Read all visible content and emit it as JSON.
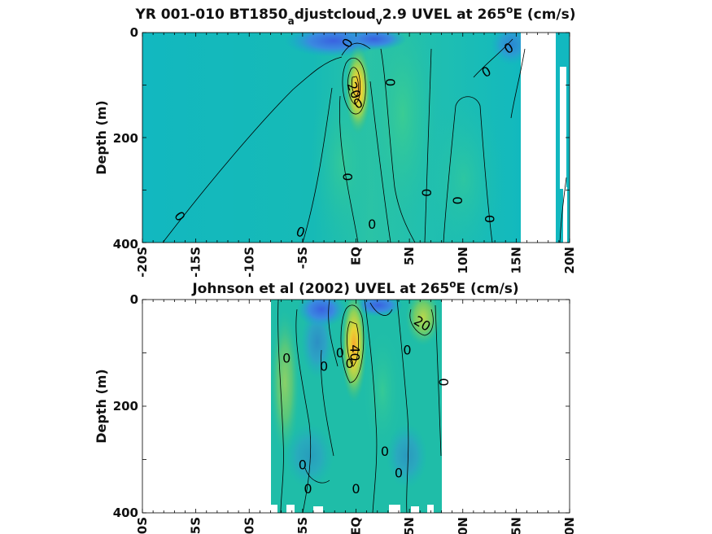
{
  "colors": {
    "background": "#12b8c0",
    "positive": "#f0c535",
    "negative": "#2d6fd6",
    "contour": "#000000"
  },
  "chart_data": [
    {
      "type": "heatmap",
      "title": "YR 001-010 BT1850",
      "title_sub1": "a",
      "title_mid": "djustcloud",
      "title_sub2": "v",
      "title_end": "2.9 UVEL at 265",
      "title_sup": "o",
      "title_unit": "E (cm/s)",
      "ylabel": "Depth (m)",
      "xlim": [
        -20,
        20
      ],
      "ylim": [
        0,
        400
      ],
      "y_reversed": true,
      "xticks": [
        "-20S",
        "-15S",
        "-10S",
        "-5S",
        "EQ",
        "5N",
        "10N",
        "15N",
        "20N"
      ],
      "yticks": [
        "0",
        "200",
        "400"
      ],
      "data_extent_x": [
        -20,
        15.5
      ],
      "features": [
        {
          "kind": "jet_core",
          "lat": 0.2,
          "depth": 75,
          "value": 40
        },
        {
          "kind": "westward_surface",
          "lat": -1,
          "depth": 5,
          "value": -20
        },
        {
          "kind": "westward_surface",
          "lat": 1.5,
          "depth": 8,
          "value": -20
        }
      ],
      "contour_labels": [
        {
          "text": "0",
          "lat": -16.5,
          "depth": 350,
          "angle": 55
        },
        {
          "text": "0",
          "lat": -5.2,
          "depth": 380,
          "angle": 20
        },
        {
          "text": "0",
          "lat": -0.8,
          "depth": 20,
          "angle": -60
        },
        {
          "text": "20",
          "lat": -0.2,
          "depth": 110,
          "angle": 70
        },
        {
          "text": "0",
          "lat": 0.2,
          "depth": 135,
          "angle": -30
        },
        {
          "text": "0",
          "lat": 3.2,
          "depth": 95,
          "angle": 90
        },
        {
          "text": "0",
          "lat": -0.8,
          "depth": 275,
          "angle": 90
        },
        {
          "text": "0",
          "lat": 1.5,
          "depth": 365,
          "angle": 0
        },
        {
          "text": "0",
          "lat": 6.6,
          "depth": 305,
          "angle": 90
        },
        {
          "text": "0",
          "lat": 9.5,
          "depth": 320,
          "angle": 90
        },
        {
          "text": "0",
          "lat": 12.5,
          "depth": 355,
          "angle": 90
        },
        {
          "text": "0",
          "lat": 12.2,
          "depth": 75,
          "angle": -30
        },
        {
          "text": "0",
          "lat": 14.3,
          "depth": 30,
          "angle": -30
        }
      ]
    },
    {
      "type": "heatmap",
      "title": "Johnson et al (2002) UVEL at 265",
      "title_sup": "o",
      "title_unit": "E (cm/s)",
      "ylabel": "Depth (m)",
      "xlim": [
        -20,
        20
      ],
      "ylim": [
        0,
        400
      ],
      "y_reversed": true,
      "xticks": [
        "-20S",
        "-15S",
        "-10S",
        "-5S",
        "EQ",
        "5N",
        "10N",
        "15N",
        "20N"
      ],
      "yticks": [
        "0",
        "200",
        "400"
      ],
      "data_extent_x": [
        -8,
        8
      ],
      "features": [
        {
          "kind": "jet_core",
          "lat": 0,
          "depth": 70,
          "value": 40
        },
        {
          "kind": "eastward_surface",
          "lat": 6.5,
          "depth": 30,
          "value": 20
        },
        {
          "kind": "westward_surface",
          "lat": -4,
          "depth": 10,
          "value": -20
        },
        {
          "kind": "westward_surface",
          "lat": 2,
          "depth": 10,
          "value": -20
        }
      ],
      "contour_labels": [
        {
          "text": "0",
          "lat": -6.5,
          "depth": 110,
          "angle": 0
        },
        {
          "text": "0",
          "lat": -1.5,
          "depth": 100,
          "angle": 0
        },
        {
          "text": "0",
          "lat": -3,
          "depth": 125,
          "angle": 0
        },
        {
          "text": "0",
          "lat": -0.6,
          "depth": 120,
          "angle": 0
        },
        {
          "text": "40",
          "lat": -0.1,
          "depth": 100,
          "angle": 90
        },
        {
          "text": "20",
          "lat": 6.2,
          "depth": 45,
          "angle": 30
        },
        {
          "text": "0",
          "lat": 4.8,
          "depth": 95,
          "angle": 0
        },
        {
          "text": "0",
          "lat": 8.2,
          "depth": 155,
          "angle": 90
        },
        {
          "text": "0",
          "lat": 2.7,
          "depth": 285,
          "angle": 0
        },
        {
          "text": "0",
          "lat": 4,
          "depth": 325,
          "angle": 0
        },
        {
          "text": "0",
          "lat": -5,
          "depth": 310,
          "angle": 0
        },
        {
          "text": "0",
          "lat": -4.5,
          "depth": 355,
          "angle": 0
        },
        {
          "text": "0",
          "lat": 0,
          "depth": 355,
          "angle": 0
        }
      ]
    }
  ]
}
